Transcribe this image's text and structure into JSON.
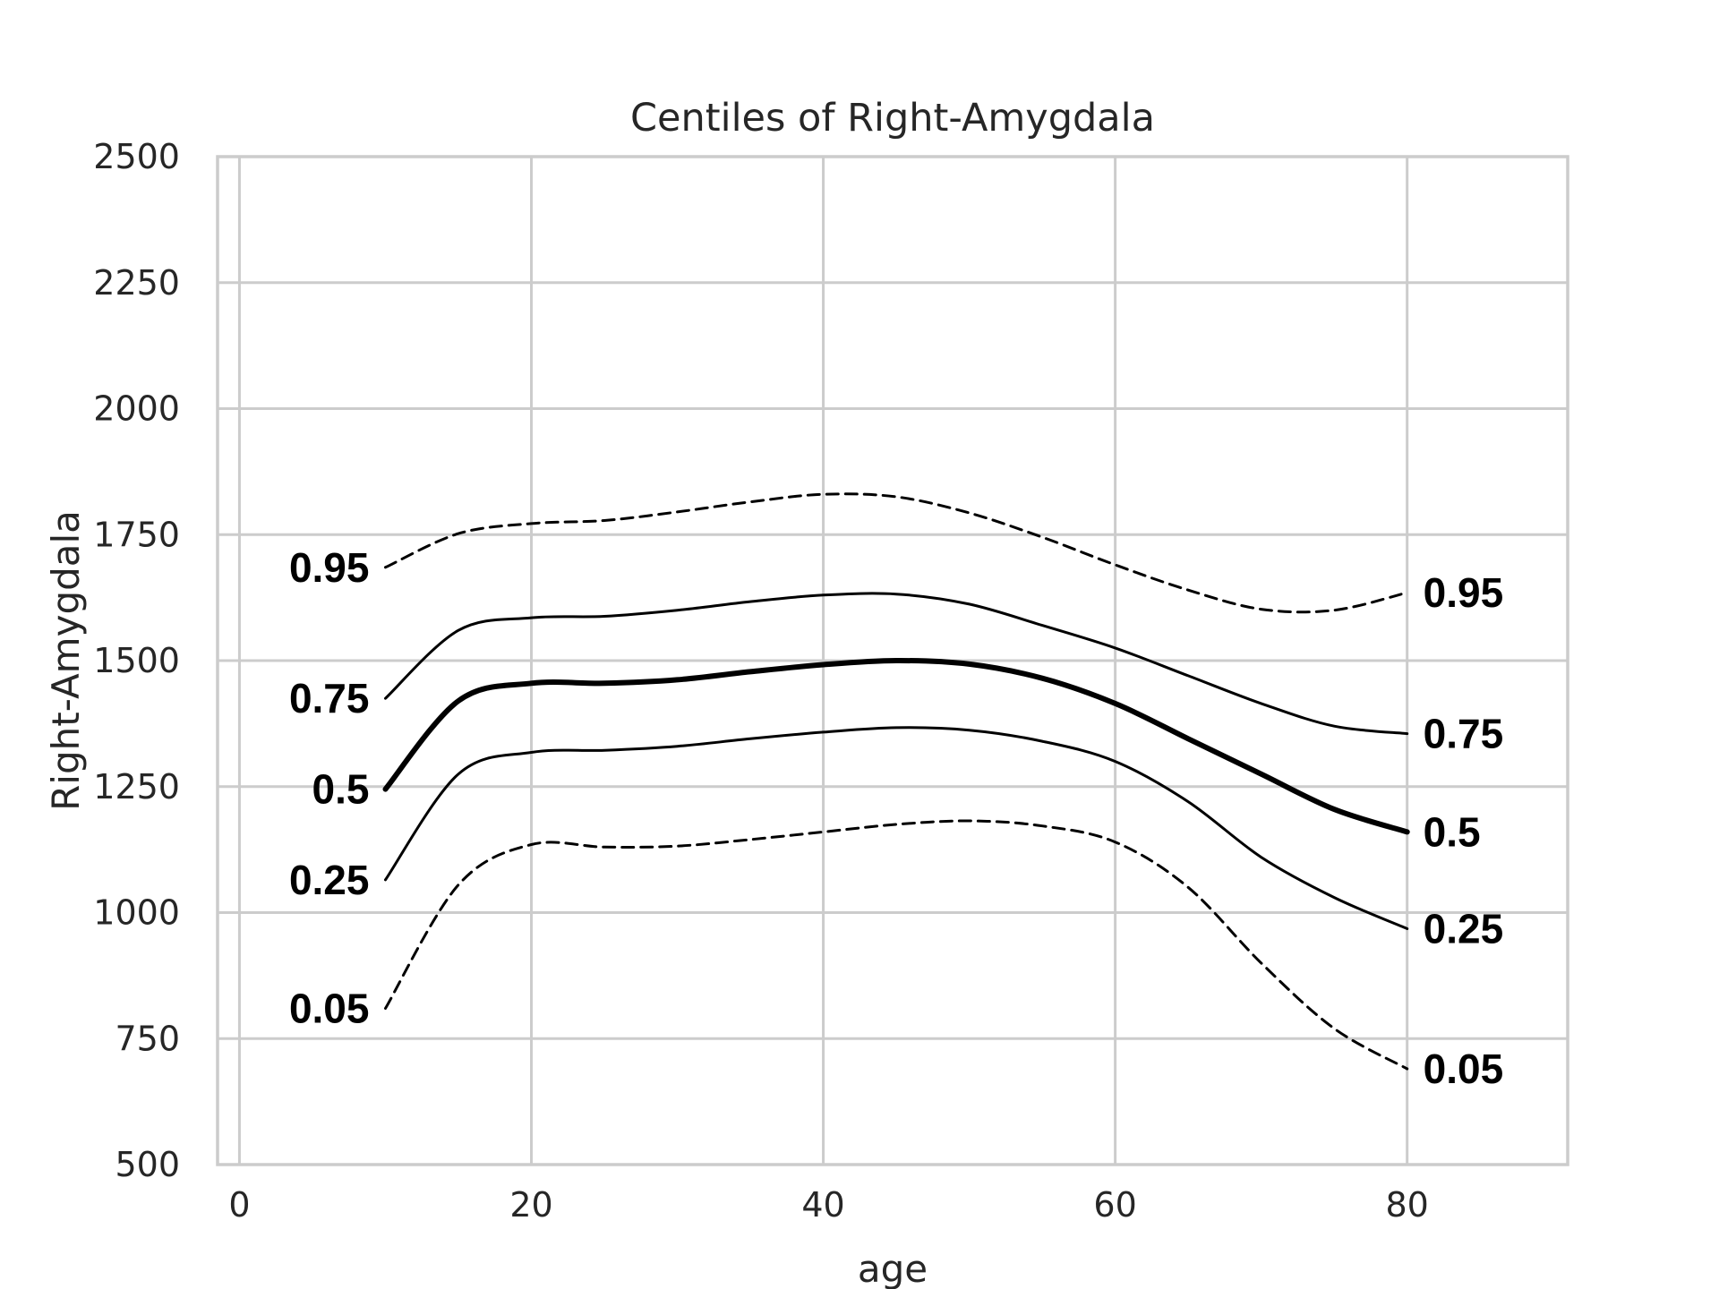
{
  "chart_data": {
    "type": "line",
    "title": "Centiles of Right-Amygdala",
    "xlabel": "age",
    "ylabel": "Right-Amygdala",
    "xlim": [
      -1.5,
      91
    ],
    "ylim": [
      500,
      2500
    ],
    "xticks": [
      0,
      20,
      40,
      60,
      80
    ],
    "yticks": [
      500,
      750,
      1000,
      1250,
      1500,
      1750,
      2000,
      2250,
      2500
    ],
    "grid": true,
    "legend": "none",
    "x": [
      10,
      15,
      20,
      25,
      30,
      35,
      40,
      45,
      50,
      55,
      60,
      65,
      70,
      75,
      80
    ],
    "series": [
      {
        "name": "0.05",
        "dashed": true,
        "line_width": "thin",
        "values": [
          810,
          1055,
          1135,
          1130,
          1132,
          1145,
          1160,
          1175,
          1182,
          1172,
          1140,
          1050,
          900,
          770,
          690
        ]
      },
      {
        "name": "0.25",
        "dashed": false,
        "line_width": "thin",
        "values": [
          1065,
          1275,
          1318,
          1322,
          1330,
          1345,
          1358,
          1367,
          1362,
          1340,
          1300,
          1220,
          1110,
          1030,
          968
        ]
      },
      {
        "name": "0.5",
        "dashed": false,
        "line_width": "thick",
        "values": [
          1245,
          1420,
          1455,
          1455,
          1462,
          1478,
          1492,
          1500,
          1493,
          1465,
          1415,
          1345,
          1275,
          1205,
          1160
        ]
      },
      {
        "name": "0.75",
        "dashed": false,
        "line_width": "thin",
        "values": [
          1425,
          1560,
          1585,
          1588,
          1600,
          1617,
          1630,
          1632,
          1612,
          1570,
          1525,
          1470,
          1415,
          1370,
          1355
        ]
      },
      {
        "name": "0.95",
        "dashed": true,
        "line_width": "thin",
        "values": [
          1685,
          1752,
          1772,
          1778,
          1795,
          1815,
          1830,
          1825,
          1793,
          1745,
          1690,
          1640,
          1602,
          1600,
          1635
        ]
      }
    ]
  }
}
